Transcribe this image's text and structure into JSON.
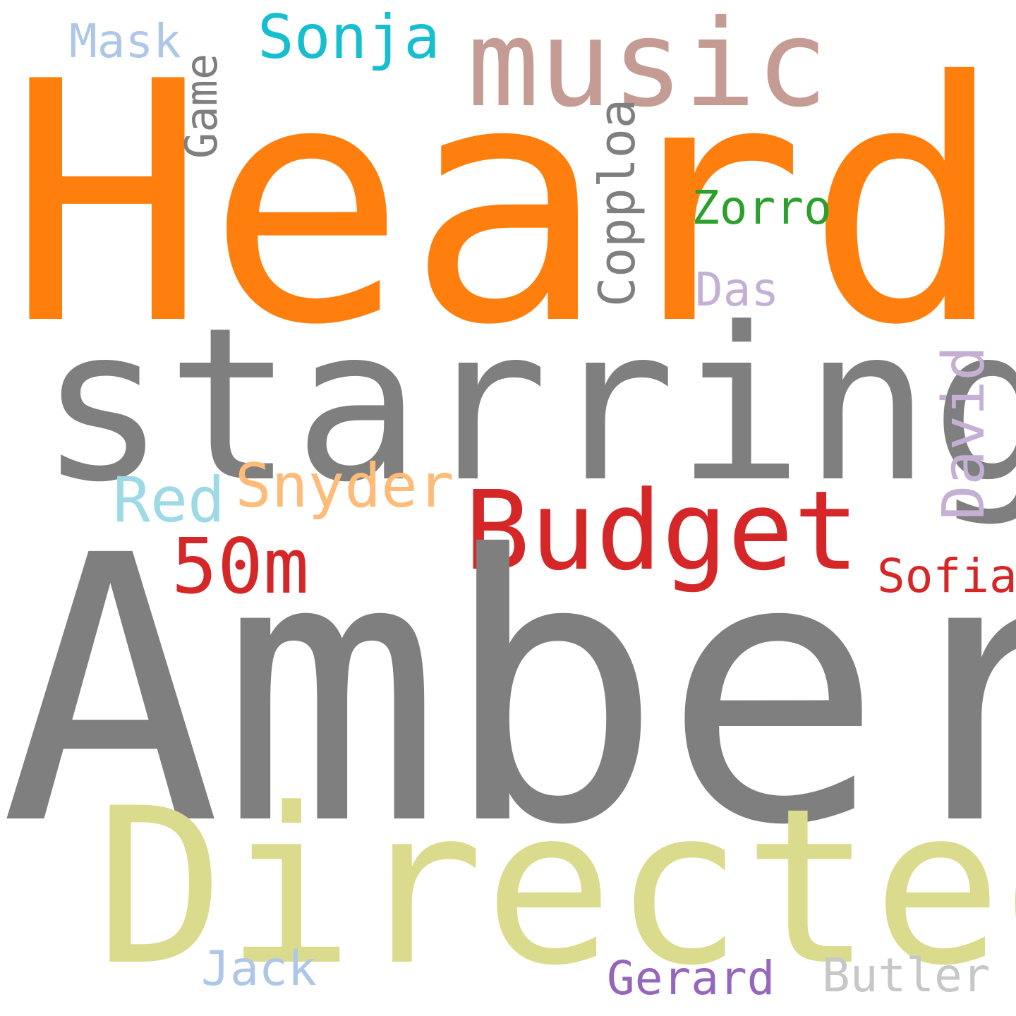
{
  "words": {
    "heard": {
      "text": "Heard",
      "color": "#ff7f0e"
    },
    "amber": {
      "text": "Amber",
      "color": "#7f7f7f"
    },
    "starring": {
      "text": "starring",
      "color": "#7f7f7f"
    },
    "directed": {
      "text": "Directed",
      "color": "#dbdb8d"
    },
    "music": {
      "text": "music",
      "color": "#c49c94"
    },
    "budget": {
      "text": "Budget",
      "color": "#d62728"
    },
    "m50": {
      "text": "50m",
      "color": "#d62728"
    },
    "sonja": {
      "text": "Sonja",
      "color": "#17becf"
    },
    "snyder": {
      "text": "Snyder",
      "color": "#ffbb78"
    },
    "red": {
      "text": "Red",
      "color": "#9edae5"
    },
    "zorro": {
      "text": "Zorro",
      "color": "#2ca02c"
    },
    "das": {
      "text": "Das",
      "color": "#c5b0d5"
    },
    "sofia": {
      "text": "Sofia",
      "color": "#d62728"
    },
    "mask": {
      "text": "Mask",
      "color": "#aec7e8"
    },
    "jack": {
      "text": "Jack",
      "color": "#aec7e8"
    },
    "gerard": {
      "text": "Gerard",
      "color": "#9467bd"
    },
    "butler": {
      "text": "Butler",
      "color": "#c7c7c7"
    },
    "game": {
      "text": "Game",
      "color": "#7f7f7f"
    },
    "copploa": {
      "text": "Copploa",
      "color": "#7f7f7f"
    },
    "david": {
      "text": "David",
      "color": "#c5b0d5"
    }
  }
}
